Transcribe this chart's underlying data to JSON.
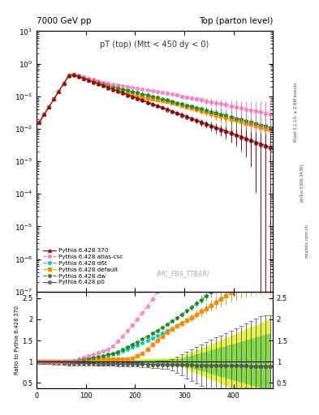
{
  "title_left": "7000 GeV pp",
  "title_right": "Top (parton level)",
  "main_title": "pT (top) (Mtt < 450 dy < 0)",
  "watermark": "(MC_FBA_TTBAR)",
  "ylabel_ratio": "Ratio to Pythia 6.428 370",
  "right_label": "Rivet 3.1.10, ≥ 2.6M events",
  "arxiv_label": "[arXiv:1306.3436]",
  "mcplots_label": "mcplots.cern.ch",
  "xlim": [
    0,
    480
  ],
  "ylim_main": [
    1e-07,
    10
  ],
  "ylim_ratio": [
    0.38,
    2.65
  ],
  "ratio_yticks": [
    0.5,
    1.0,
    1.5,
    2.0,
    2.5
  ],
  "series": [
    {
      "label": "Pythia 6.428 370",
      "color": "#8b0000",
      "linestyle": "-",
      "marker": "^",
      "markersize": 2.5,
      "filled": false,
      "zorder": 6
    },
    {
      "label": "Pythia 6.428 atlas-csc",
      "color": "#ff69b4",
      "linestyle": "--",
      "marker": "o",
      "markersize": 2.5,
      "filled": false,
      "zorder": 5
    },
    {
      "label": "Pythia 6.428 d6t",
      "color": "#00ccaa",
      "linestyle": "--",
      "marker": "*",
      "markersize": 3.5,
      "filled": true,
      "zorder": 4
    },
    {
      "label": "Pythia 6.428 default",
      "color": "#ff8800",
      "linestyle": "--",
      "marker": "s",
      "markersize": 2.5,
      "filled": true,
      "zorder": 4
    },
    {
      "label": "Pythia 6.428 dw",
      "color": "#228b22",
      "linestyle": "--",
      "marker": "*",
      "markersize": 3.5,
      "filled": true,
      "zorder": 4
    },
    {
      "label": "Pythia 6.428 p0",
      "color": "#555555",
      "linestyle": "-",
      "marker": "o",
      "markersize": 2.5,
      "filled": false,
      "zorder": 3
    }
  ],
  "background_color": "#ffffff"
}
